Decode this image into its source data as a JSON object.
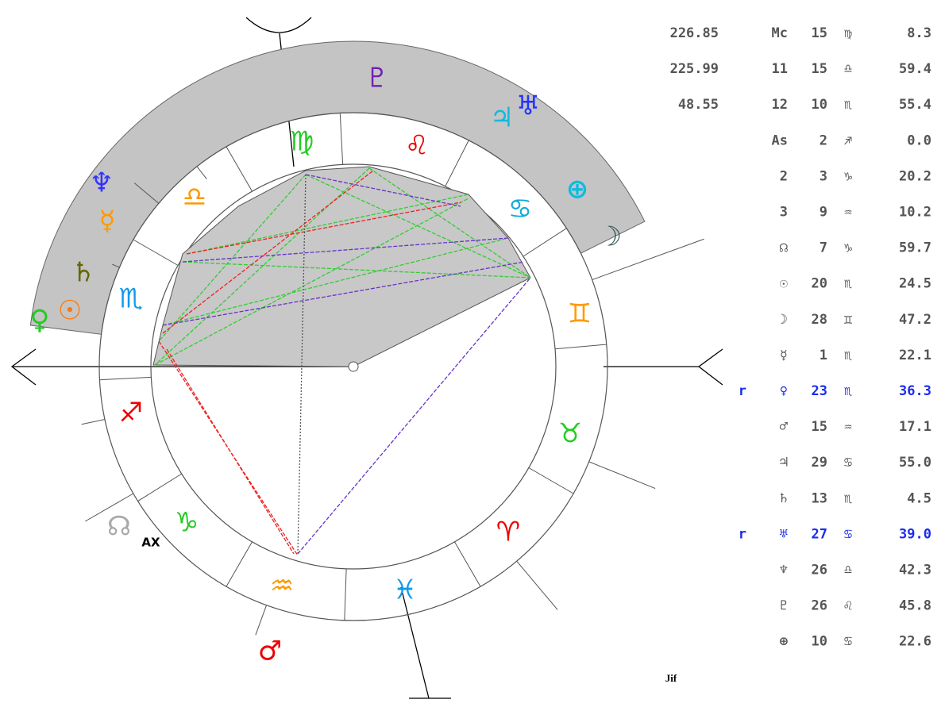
{
  "table": {
    "rows": [
      {
        "value": "226.85",
        "label": "Mc",
        "degree": "15",
        "sign": "♍",
        "minutes": "8.3"
      },
      {
        "value": "225.99",
        "label": "11",
        "degree": "15",
        "sign": "♎",
        "minutes": "59.4"
      },
      {
        "value": "48.55",
        "label": "12",
        "degree": "10",
        "sign": "♏",
        "minutes": "55.4"
      },
      {
        "label": "As",
        "degree": "2",
        "sign": "♐",
        "minutes": "0.0"
      },
      {
        "label": "2",
        "degree": "3",
        "sign": "♑",
        "minutes": "20.2"
      },
      {
        "label": "3",
        "degree": "9",
        "sign": "♒",
        "minutes": "10.2"
      },
      {
        "label": "☊",
        "degree": "7",
        "sign": "♑",
        "minutes": "59.7"
      },
      {
        "label": "☉",
        "degree": "20",
        "sign": "♏",
        "minutes": "24.5"
      },
      {
        "label": "☽",
        "degree": "28",
        "sign": "♊",
        "minutes": "47.2"
      },
      {
        "label": "☿",
        "degree": "1",
        "sign": "♏",
        "minutes": "22.1"
      },
      {
        "retro": "r",
        "label": "♀",
        "degree": "23",
        "sign": "♏",
        "minutes": "36.3"
      },
      {
        "label": "♂",
        "degree": "15",
        "sign": "♒",
        "minutes": "17.1"
      },
      {
        "label": "♃",
        "degree": "29",
        "sign": "♋",
        "minutes": "55.0"
      },
      {
        "label": "♄",
        "degree": "13",
        "sign": "♏",
        "minutes": "4.5"
      },
      {
        "retro": "r",
        "label": "♅",
        "degree": "27",
        "sign": "♋",
        "minutes": "39.0"
      },
      {
        "label": "♆",
        "degree": "26",
        "sign": "♎",
        "minutes": "42.3"
      },
      {
        "label": "♇",
        "degree": "26",
        "sign": "♌",
        "minutes": "45.8"
      },
      {
        "label": "⊕",
        "degree": "10",
        "sign": "♋",
        "minutes": "22.6"
      }
    ]
  },
  "wheel": {
    "signs": [
      "♍",
      "♌",
      "♋",
      "♊",
      "♉",
      "♈",
      "♓",
      "♒",
      "♑",
      "♐",
      "♏",
      "♎"
    ],
    "planets": [
      "♇",
      "♃",
      "♅",
      "⊕",
      "☽",
      "♆",
      "☿",
      "♄",
      "☉",
      "♀",
      "☊",
      "♂"
    ],
    "axis_label": "AX",
    "logo": "Jif"
  }
}
